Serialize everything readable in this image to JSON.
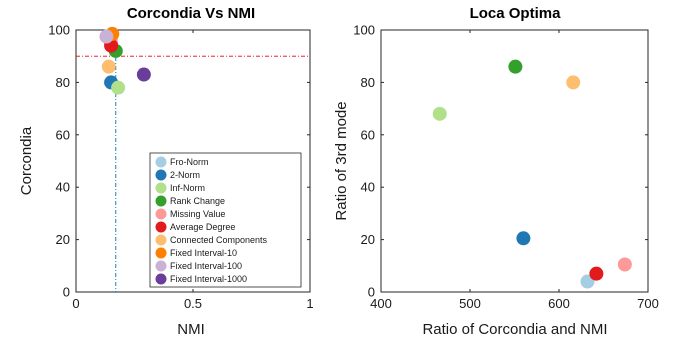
{
  "chart_data": [
    {
      "type": "scatter",
      "title": "Corcondia Vs NMI",
      "xlabel": "NMI",
      "ylabel": "Corcondia",
      "xlim": [
        0,
        1
      ],
      "ylim": [
        0,
        100
      ],
      "xticks": [
        "0",
        "0.5",
        "1"
      ],
      "yticks": [
        "0",
        "20",
        "40",
        "60",
        "80",
        "100"
      ],
      "reference_lines": [
        {
          "axis": "y",
          "value": 90,
          "color": "#e8000b",
          "style": "dash-dot"
        },
        {
          "axis": "x",
          "value": 0.17,
          "color": "#0072bd",
          "style": "dash-dot"
        }
      ],
      "legend_position": "bottom-right",
      "series": [
        {
          "name": "Fro-Norm",
          "color": "#a6cee3",
          "points": [
            [
              0.15,
              97
            ]
          ]
        },
        {
          "name": "2-Norm",
          "color": "#1f78b4",
          "points": [
            [
              0.15,
              80
            ]
          ]
        },
        {
          "name": "Inf-Norm",
          "color": "#b2df8a",
          "points": [
            [
              0.18,
              78
            ]
          ]
        },
        {
          "name": "Rank Change",
          "color": "#33a02c",
          "points": [
            [
              0.17,
              92
            ]
          ]
        },
        {
          "name": "Missing Value",
          "color": "#fb9a99",
          "points": [
            [
              0.15,
              95
            ]
          ]
        },
        {
          "name": "Average Degree",
          "color": "#e31a1c",
          "points": [
            [
              0.15,
              94
            ]
          ]
        },
        {
          "name": "Connected Components",
          "color": "#fdbf6f",
          "points": [
            [
              0.14,
              86
            ]
          ]
        },
        {
          "name": "Fixed Interval-10",
          "color": "#ff7f00",
          "points": [
            [
              0.155,
              98.5
            ]
          ]
        },
        {
          "name": "Fixed Interval-100",
          "color": "#cab2d6",
          "points": [
            [
              0.13,
              97.5
            ]
          ]
        },
        {
          "name": "Fixed Interval-1000",
          "color": "#6a3d9a",
          "points": [
            [
              0.29,
              83
            ]
          ]
        }
      ]
    },
    {
      "type": "scatter",
      "title": "Loca Optima",
      "xlabel": "Ratio of Corcondia and NMI",
      "ylabel": "Ratio of 3rd mode",
      "xlim": [
        400,
        700
      ],
      "ylim": [
        0,
        100
      ],
      "xticks": [
        "400",
        "500",
        "600",
        "700"
      ],
      "yticks": [
        "0",
        "20",
        "40",
        "60",
        "80",
        "100"
      ],
      "series": [
        {
          "name": "Fro-Norm",
          "color": "#a6cee3",
          "points": [
            [
              632,
              4
            ]
          ]
        },
        {
          "name": "2-Norm",
          "color": "#1f78b4",
          "points": [
            [
              560,
              20.5
            ]
          ]
        },
        {
          "name": "Inf-Norm",
          "color": "#b2df8a",
          "points": [
            [
              466,
              68
            ]
          ]
        },
        {
          "name": "Rank Change",
          "color": "#33a02c",
          "points": [
            [
              551,
              86
            ]
          ]
        },
        {
          "name": "Missing Value",
          "color": "#fb9a99",
          "points": [
            [
              674,
              10.5
            ]
          ]
        },
        {
          "name": "Average Degree",
          "color": "#e31a1c",
          "points": [
            [
              642,
              7
            ]
          ]
        },
        {
          "name": "Connected Components",
          "color": "#fdbf6f",
          "points": [
            [
              616,
              80
            ]
          ]
        }
      ]
    }
  ]
}
